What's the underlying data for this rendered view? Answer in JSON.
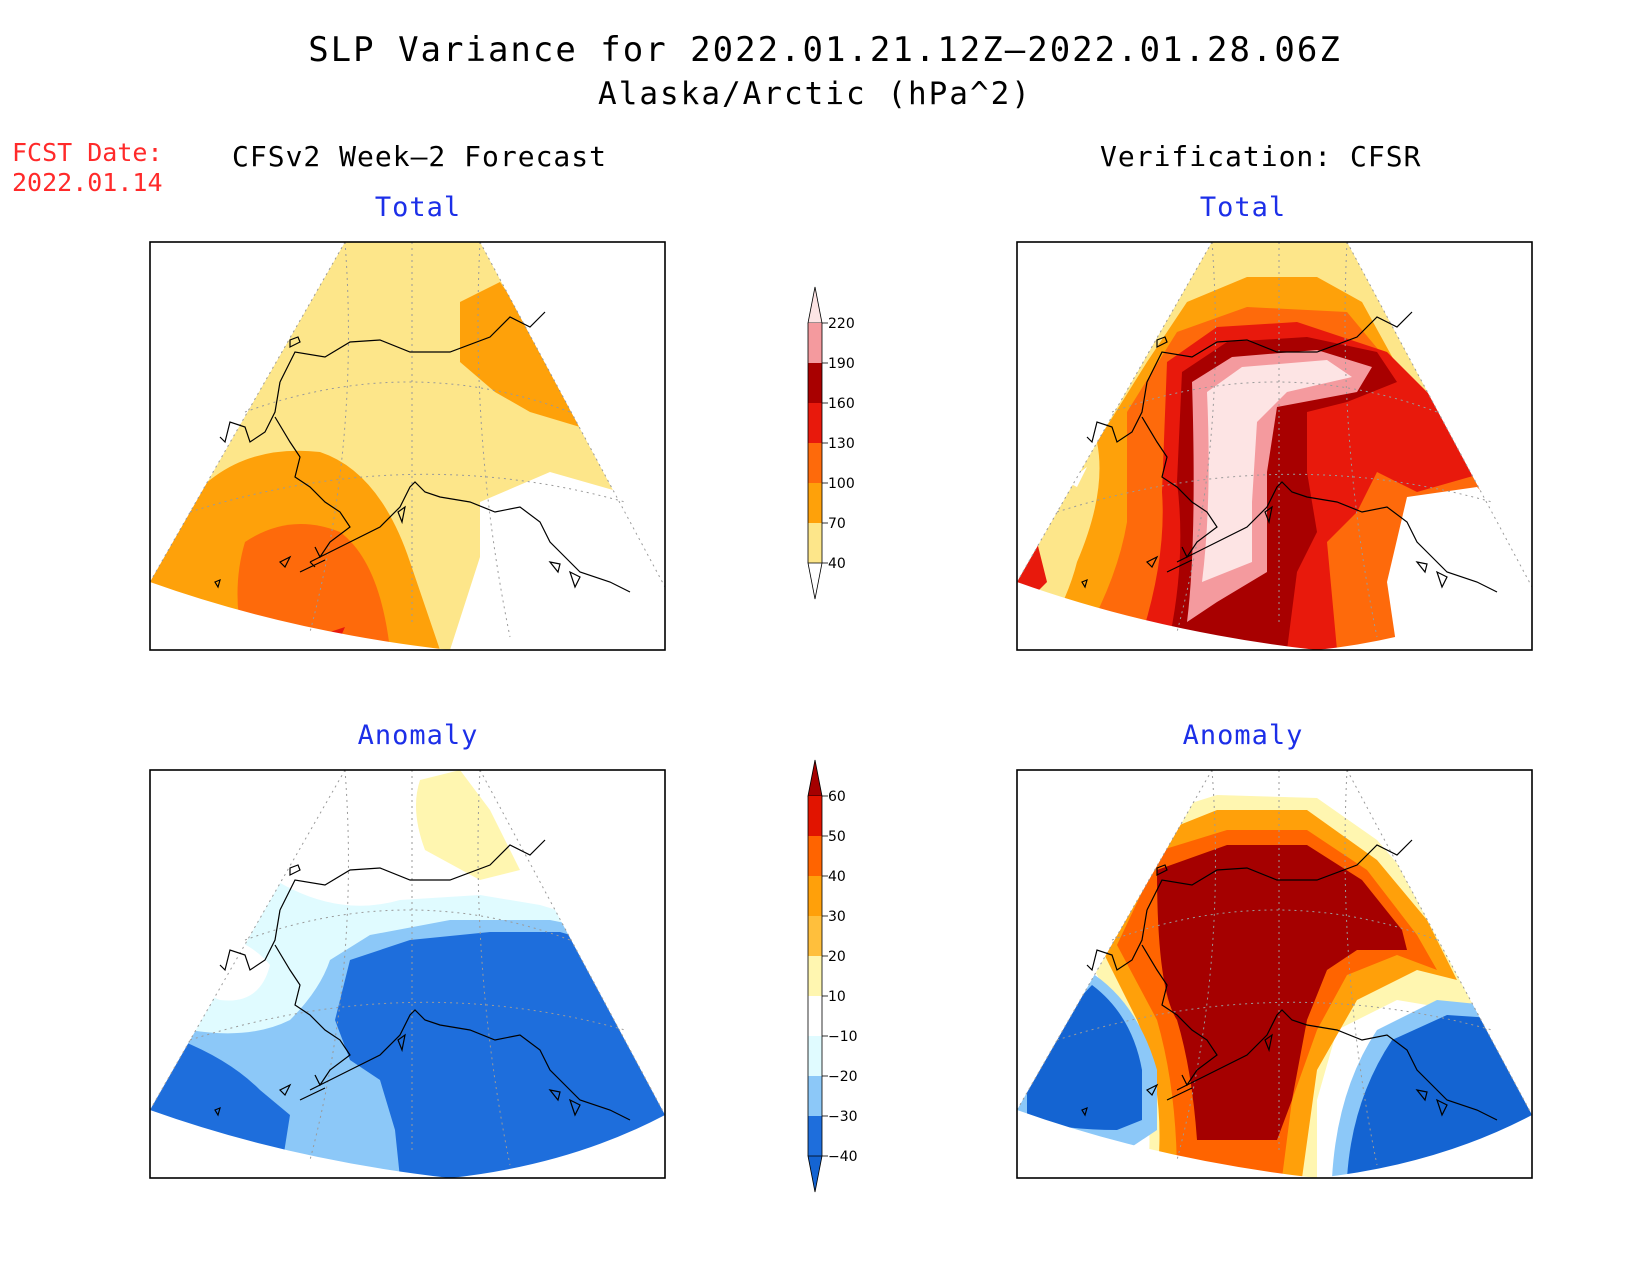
{
  "title": {
    "line1": "SLP Variance for 2022.01.21.12Z–2022.01.28.06Z",
    "line2": "Alaska/Arctic (hPa^2)"
  },
  "forecast_date": {
    "label": "FCST Date:",
    "value": "2022.01.14"
  },
  "columns": {
    "left": "CFSv2 Week–2 Forecast",
    "right": "Verification: CFSR"
  },
  "panels": [
    {
      "id": "forecast-total",
      "title": "Total"
    },
    {
      "id": "verification-total",
      "title": "Total"
    },
    {
      "id": "forecast-anomaly",
      "title": "Anomaly"
    },
    {
      "id": "verification-anomaly",
      "title": "Anomaly"
    }
  ],
  "colors": {
    "total_scale": [
      "#ffffff",
      "#fde68a",
      "#fea10a",
      "#fe6a0b",
      "#e8190c",
      "#a80000",
      "#f49a9e",
      "#fde4e4"
    ],
    "anomaly_scale": [
      "#1464d2",
      "#1e6edc",
      "#8cc8f8",
      "#e0fbff",
      "#ffffff",
      "#fff6b0",
      "#ffbf3c",
      "#ffa00a",
      "#ff6400",
      "#e11400",
      "#a50000"
    ],
    "title_blue": "#1c2fe8",
    "fcst_red": "#ff2a2a"
  },
  "colorbars": {
    "total": {
      "levels": [
        "40",
        "70",
        "100",
        "130",
        "160",
        "190",
        "220"
      ]
    },
    "anomaly": {
      "levels": [
        "−40",
        "−30",
        "−20",
        "−10",
        "10",
        "20",
        "30",
        "40",
        "50",
        "60"
      ]
    }
  }
}
